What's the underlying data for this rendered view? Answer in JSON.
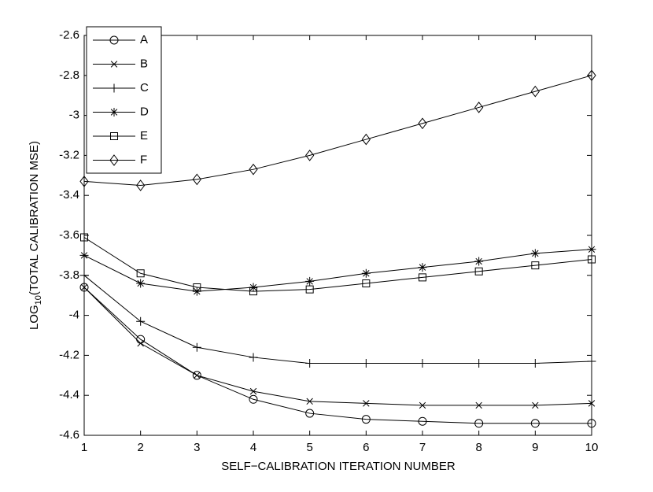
{
  "chart_data": {
    "type": "line",
    "xlabel": "SELF−CALIBRATION ITERATION NUMBER",
    "ylabel": {
      "base": "LOG",
      "sub": "10",
      "rest": "(TOTAL CALIBRATION MSE)"
    },
    "x": [
      1,
      2,
      3,
      4,
      5,
      6,
      7,
      8,
      9,
      10
    ],
    "xlim": [
      1,
      10
    ],
    "xticks": [
      1,
      2,
      3,
      4,
      5,
      6,
      7,
      8,
      9,
      10
    ],
    "ylim": [
      -4.6,
      -2.6
    ],
    "yticks": [
      -4.6,
      -4.4,
      -4.2,
      -4,
      -3.8,
      -3.6,
      -3.4,
      -3.2,
      -3,
      -2.8,
      -2.6
    ],
    "grid": false,
    "legend": "upper left",
    "series": [
      {
        "name": "A",
        "color": "#000000",
        "marker": "circle",
        "values": [
          -3.86,
          -4.12,
          -4.3,
          -4.42,
          -4.49,
          -4.52,
          -4.53,
          -4.54,
          -4.54,
          -4.54
        ]
      },
      {
        "name": "B",
        "color": "#000000",
        "marker": "x",
        "values": [
          -3.86,
          -4.14,
          -4.3,
          -4.38,
          -4.43,
          -4.44,
          -4.45,
          -4.45,
          -4.45,
          -4.44
        ]
      },
      {
        "name": "C",
        "color": "#000000",
        "marker": "plus",
        "values": [
          -3.8,
          -4.03,
          -4.16,
          -4.21,
          -4.24,
          -4.24,
          -4.24,
          -4.24,
          -4.24,
          -4.23
        ]
      },
      {
        "name": "D",
        "color": "#000000",
        "marker": "star",
        "values": [
          -3.7,
          -3.84,
          -3.88,
          -3.86,
          -3.83,
          -3.79,
          -3.76,
          -3.73,
          -3.69,
          -3.67
        ]
      },
      {
        "name": "E",
        "color": "#000000",
        "marker": "square",
        "values": [
          -3.61,
          -3.79,
          -3.86,
          -3.88,
          -3.87,
          -3.84,
          -3.81,
          -3.78,
          -3.75,
          -3.72
        ]
      },
      {
        "name": "F",
        "color": "#000000",
        "marker": "diamond",
        "values": [
          -3.33,
          -3.35,
          -3.32,
          -3.27,
          -3.2,
          -3.12,
          -3.04,
          -2.96,
          -2.88,
          -2.8
        ]
      }
    ]
  }
}
